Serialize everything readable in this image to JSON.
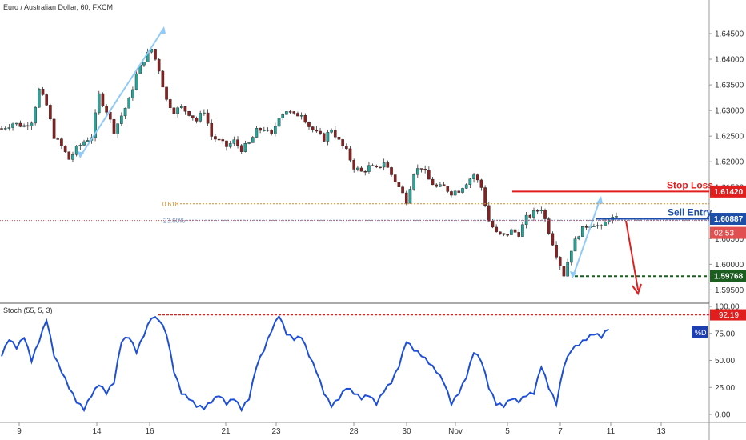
{
  "chart_data": [
    {
      "type": "candlestick",
      "title": "Euro / Australian Dollar, 60, FXCM",
      "y_ticks": [
        "1.64500",
        "1.64000",
        "1.63500",
        "1.63000",
        "1.62500",
        "1.62000",
        "1.61500",
        "1.60500",
        "1.60000",
        "1.59500"
      ],
      "ylim": [
        1.5935,
        1.65
      ],
      "x_ticks": [
        "9",
        "14",
        "16",
        "21",
        "23",
        "28",
        "30",
        "Nov",
        "5",
        "7",
        "11",
        "13"
      ],
      "close_path": [
        [
          0,
          1.6265
        ],
        [
          3,
          1.6275
        ],
        [
          6,
          1.627
        ],
        [
          8,
          1.628
        ],
        [
          10,
          1.634
        ],
        [
          12,
          1.631
        ],
        [
          14,
          1.625
        ],
        [
          16,
          1.623
        ],
        [
          18,
          1.6205
        ],
        [
          20,
          1.6225
        ],
        [
          22,
          1.624
        ],
        [
          24,
          1.625
        ],
        [
          26,
          1.633
        ],
        [
          28,
          1.63
        ],
        [
          30,
          1.626
        ],
        [
          32,
          1.629
        ],
        [
          34,
          1.632
        ],
        [
          36,
          1.637
        ],
        [
          38,
          1.64
        ],
        [
          40,
          1.642
        ],
        [
          42,
          1.638
        ],
        [
          44,
          1.632
        ],
        [
          46,
          1.63
        ],
        [
          48,
          1.6305
        ],
        [
          50,
          1.6295
        ],
        [
          52,
          1.628
        ],
        [
          54,
          1.63
        ],
        [
          56,
          1.625
        ],
        [
          58,
          1.624
        ],
        [
          60,
          1.623
        ],
        [
          62,
          1.624
        ],
        [
          64,
          1.6225
        ],
        [
          66,
          1.6235
        ],
        [
          68,
          1.626
        ],
        [
          70,
          1.6265
        ],
        [
          72,
          1.625
        ],
        [
          74,
          1.629
        ],
        [
          76,
          1.63
        ],
        [
          78,
          1.629
        ],
        [
          80,
          1.6295
        ],
        [
          82,
          1.627
        ],
        [
          84,
          1.6255
        ],
        [
          86,
          1.6245
        ],
        [
          88,
          1.6265
        ],
        [
          90,
          1.624
        ],
        [
          92,
          1.622
        ],
        [
          94,
          1.619
        ],
        [
          96,
          1.618
        ],
        [
          98,
          1.619
        ],
        [
          100,
          1.6185
        ],
        [
          102,
          1.62
        ],
        [
          104,
          1.6175
        ],
        [
          106,
          1.615
        ],
        [
          108,
          1.6125
        ],
        [
          110,
          1.618
        ],
        [
          112,
          1.619
        ],
        [
          114,
          1.6165
        ],
        [
          116,
          1.615
        ],
        [
          118,
          1.615
        ],
        [
          120,
          1.614
        ],
        [
          122,
          1.6145
        ],
        [
          124,
          1.616
        ],
        [
          126,
          1.6175
        ],
        [
          128,
          1.615
        ],
        [
          130,
          1.6085
        ],
        [
          132,
          1.606
        ],
        [
          134,
          1.6055
        ],
        [
          136,
          1.6065
        ],
        [
          138,
          1.606
        ],
        [
          140,
          1.609
        ],
        [
          142,
          1.61
        ],
        [
          144,
          1.611
        ],
        [
          146,
          1.6065
        ],
        [
          148,
          1.602
        ],
        [
          150,
          1.598
        ],
        [
          152,
          1.603
        ],
        [
          154,
          1.606
        ],
        [
          156,
          1.6075
        ],
        [
          158,
          1.608
        ],
        [
          160,
          1.607
        ],
        [
          162,
          1.609
        ],
        [
          164,
          1.6088
        ]
      ],
      "annotations": {
        "stop_loss": {
          "label": "Stop Loss",
          "value": "1.61420",
          "price": 1.6142,
          "color": "#e01e1e"
        },
        "sell_entry": {
          "label": "Sell Entry",
          "value": "1.60887",
          "price": 1.60887,
          "color": "#1e4fa8"
        },
        "current": {
          "value": "1.60855",
          "price": 1.60855,
          "countdown": "02:53",
          "color": "#e05050"
        },
        "take_profit": {
          "value": "1.59768",
          "price": 1.59768,
          "color": "#1b5e20"
        },
        "fib_618": {
          "label": "0.618",
          "price": 1.6118,
          "color": "#d88a20"
        },
        "fib_236": {
          "label": "23.60%",
          "price": 1.6086,
          "color": "#5b7fc0"
        }
      }
    },
    {
      "type": "line",
      "title": "Stoch (55, 5, 3)",
      "series_name": "%D",
      "y_ticks": [
        "100.00",
        "75.00",
        "50.00",
        "25.00",
        "0.00"
      ],
      "ylim": [
        0,
        100
      ],
      "level": {
        "value": "92.19",
        "price": 92.19,
        "color": "#e01e1e"
      },
      "line_color": "#1e4fd8",
      "values": [
        [
          0,
          55
        ],
        [
          2,
          70
        ],
        [
          4,
          62
        ],
        [
          6,
          72
        ],
        [
          8,
          50
        ],
        [
          10,
          68
        ],
        [
          12,
          88
        ],
        [
          14,
          55
        ],
        [
          16,
          40
        ],
        [
          18,
          25
        ],
        [
          20,
          12
        ],
        [
          22,
          5
        ],
        [
          24,
          18
        ],
        [
          26,
          28
        ],
        [
          28,
          20
        ],
        [
          30,
          30
        ],
        [
          32,
          68
        ],
        [
          34,
          72
        ],
        [
          36,
          58
        ],
        [
          38,
          74
        ],
        [
          40,
          90
        ],
        [
          42,
          88
        ],
        [
          44,
          75
        ],
        [
          46,
          40
        ],
        [
          48,
          20
        ],
        [
          50,
          15
        ],
        [
          52,
          8
        ],
        [
          54,
          6
        ],
        [
          56,
          12
        ],
        [
          58,
          18
        ],
        [
          60,
          10
        ],
        [
          62,
          15
        ],
        [
          64,
          5
        ],
        [
          66,
          15
        ],
        [
          68,
          45
        ],
        [
          70,
          60
        ],
        [
          72,
          78
        ],
        [
          74,
          92
        ],
        [
          76,
          75
        ],
        [
          78,
          70
        ],
        [
          80,
          72
        ],
        [
          82,
          55
        ],
        [
          84,
          40
        ],
        [
          86,
          20
        ],
        [
          88,
          8
        ],
        [
          90,
          15
        ],
        [
          92,
          25
        ],
        [
          94,
          20
        ],
        [
          96,
          15
        ],
        [
          98,
          18
        ],
        [
          100,
          10
        ],
        [
          102,
          22
        ],
        [
          104,
          30
        ],
        [
          106,
          45
        ],
        [
          108,
          68
        ],
        [
          110,
          60
        ],
        [
          112,
          55
        ],
        [
          114,
          48
        ],
        [
          116,
          40
        ],
        [
          118,
          30
        ],
        [
          120,
          10
        ],
        [
          122,
          20
        ],
        [
          124,
          35
        ],
        [
          126,
          58
        ],
        [
          128,
          50
        ],
        [
          130,
          25
        ],
        [
          132,
          10
        ],
        [
          134,
          8
        ],
        [
          136,
          15
        ],
        [
          138,
          12
        ],
        [
          140,
          18
        ],
        [
          142,
          20
        ],
        [
          144,
          45
        ],
        [
          146,
          25
        ],
        [
          148,
          10
        ],
        [
          150,
          45
        ],
        [
          152,
          60
        ],
        [
          154,
          65
        ],
        [
          156,
          70
        ],
        [
          158,
          75
        ],
        [
          160,
          72
        ],
        [
          162,
          80
        ]
      ]
    }
  ],
  "chart_x_ticks": [
    "9",
    "14",
    "16",
    "21",
    "23",
    "28",
    "30",
    "Nov",
    "5",
    "7",
    "11",
    "13"
  ]
}
